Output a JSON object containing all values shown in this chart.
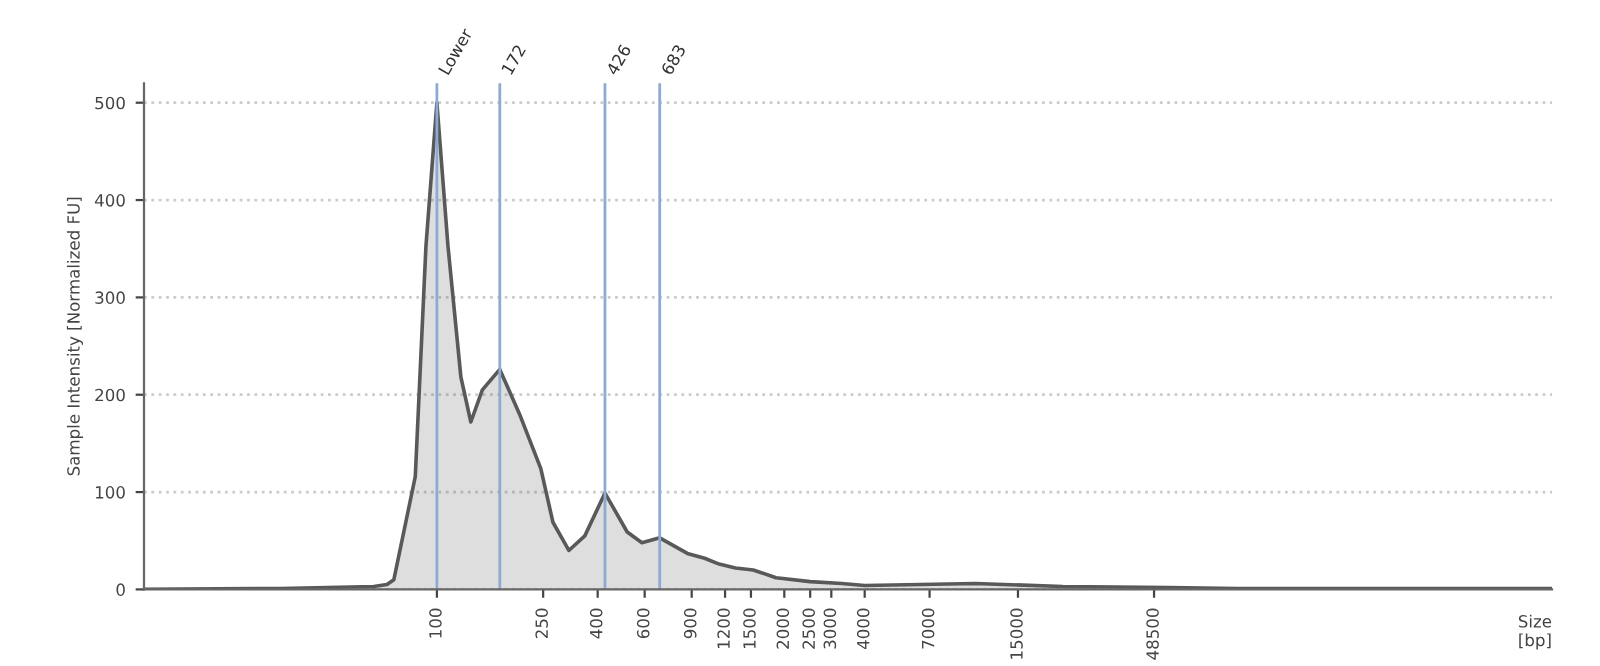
{
  "chart_data": {
    "type": "area",
    "xlabel": "Size\n[bp]",
    "ylabel": "Sample Intensity [Normalized FU]",
    "series": [
      {
        "color": "#595959",
        "x": [
          8,
          26,
          58,
          65,
          69,
          83,
          91,
          100,
          110,
          123,
          134,
          148,
          172,
          204,
          245,
          272,
          312,
          358,
          426,
          516,
          586,
          683,
          867,
          1006,
          1140,
          1313,
          1530,
          1863,
          2500,
          3285,
          4000,
          10400,
          22100,
          55000,
          100000,
          1500000
        ],
        "values": [
          0,
          1,
          3,
          5,
          10,
          116,
          353,
          500,
          353,
          218,
          172,
          205,
          226,
          180,
          124,
          69,
          40,
          55,
          99,
          59,
          48,
          53,
          37,
          32,
          26,
          22,
          20,
          12,
          8,
          6,
          4,
          6,
          3,
          2,
          1,
          1
        ]
      }
    ],
    "log": "x",
    "xlim": [
      8,
      1500000
    ],
    "xticks": [
      100,
      250,
      400,
      600,
      900,
      1200,
      1500,
      2000,
      2500,
      3000,
      4000,
      7000,
      15000,
      48500
    ],
    "ylim": [
      0,
      520
    ],
    "yticks": [
      0,
      100,
      200,
      300,
      400,
      500
    ],
    "grid": "y",
    "ref_lines": [
      {
        "axis": "x",
        "value": 100,
        "label": "Lower",
        "color": "#8eaad2"
      },
      {
        "axis": "x",
        "value": 172,
        "label": "172",
        "color": "#8eaad2"
      },
      {
        "axis": "x",
        "value": 426,
        "label": "426",
        "color": "#8eaad2"
      },
      {
        "axis": "x",
        "value": 683,
        "label": "683",
        "color": "#8eaad2"
      }
    ]
  }
}
